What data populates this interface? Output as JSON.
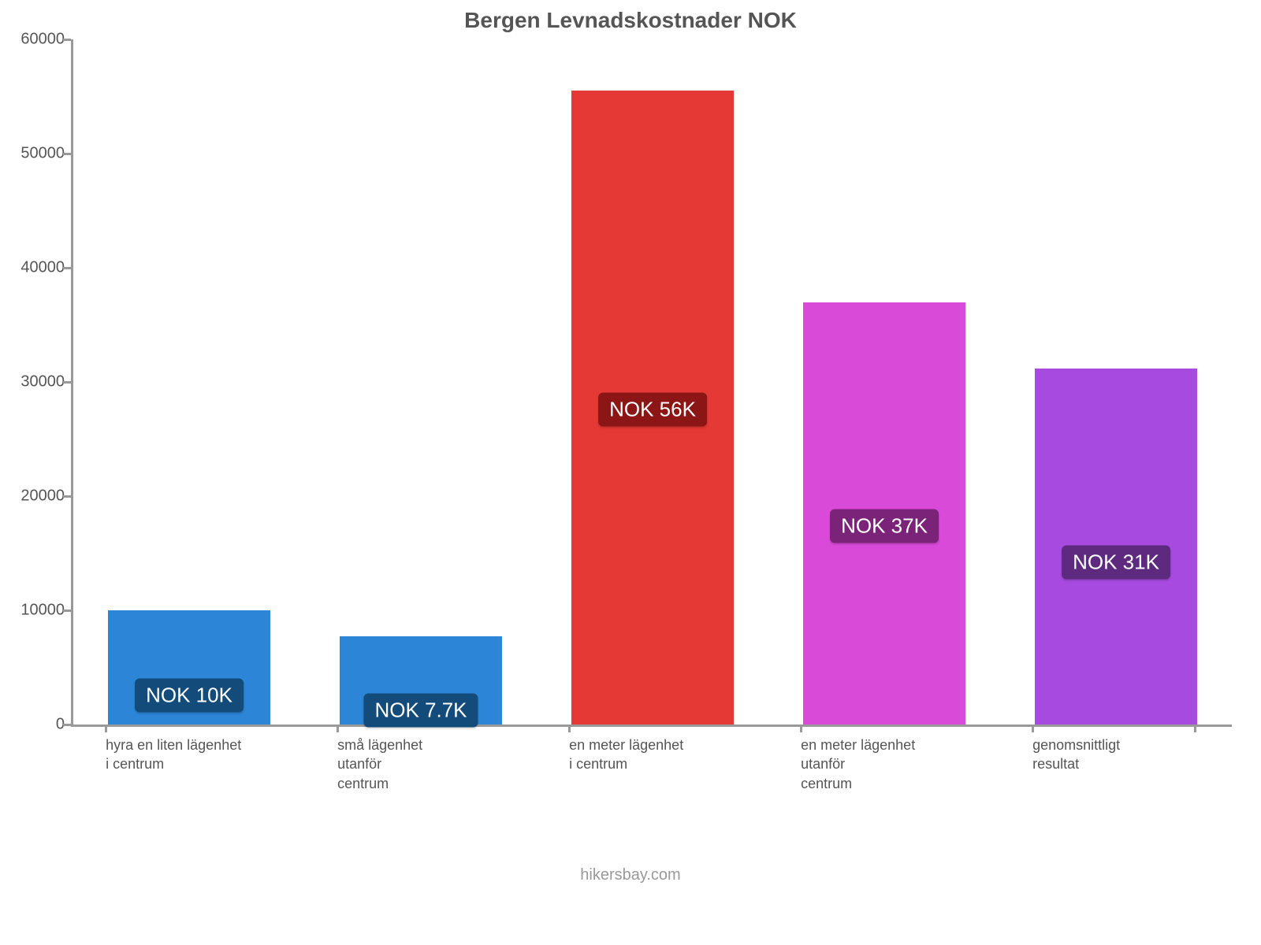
{
  "chart": {
    "type": "bar",
    "title": "Bergen Levnadskostnader NOK",
    "title_fontsize": 28,
    "title_color": "#555555",
    "background_color": "#ffffff",
    "axis_color": "#999999",
    "tick_label_color": "#555555",
    "xlabel_color": "#555555",
    "tick_fontsize": 20,
    "xlabel_fontsize": 18,
    "badge_fontsize": 26,
    "ylim": [
      0,
      60000
    ],
    "ytick_step": 10000,
    "yticks": [
      {
        "value": 0,
        "label": "0"
      },
      {
        "value": 10000,
        "label": "10000"
      },
      {
        "value": 20000,
        "label": "20000"
      },
      {
        "value": 30000,
        "label": "30000"
      },
      {
        "value": 40000,
        "label": "40000"
      },
      {
        "value": 50000,
        "label": "50000"
      },
      {
        "value": 60000,
        "label": "60000"
      }
    ],
    "bar_width": 0.7,
    "bars": [
      {
        "label_lines": [
          "hyra en liten lägenhet",
          "i centrum"
        ],
        "value": 10000,
        "color": "#2c85d7",
        "badge_text": "NOK 10K",
        "badge_bg": "#134b7a"
      },
      {
        "label_lines": [
          "små lägenhet",
          "utanför",
          "centrum"
        ],
        "value": 7700,
        "color": "#2c85d7",
        "badge_text": "NOK 7.7K",
        "badge_bg": "#134b7a"
      },
      {
        "label_lines": [
          "en meter lägenhet",
          "i centrum"
        ],
        "value": 55500,
        "color": "#e53935",
        "badge_text": "NOK 56K",
        "badge_bg": "#8c1616"
      },
      {
        "label_lines": [
          "en meter lägenhet",
          "utanför",
          "centrum"
        ],
        "value": 37000,
        "color": "#d94ad9",
        "badge_text": "NOK 37K",
        "badge_bg": "#7a2378"
      },
      {
        "label_lines": [
          "genomsnittligt",
          "resultat"
        ],
        "value": 31200,
        "color": "#a64ae0",
        "badge_text": "NOK 31K",
        "badge_bg": "#5e2a80"
      }
    ]
  },
  "footer": {
    "text": "hikersbay.com",
    "color": "#999999",
    "fontsize": 20
  }
}
